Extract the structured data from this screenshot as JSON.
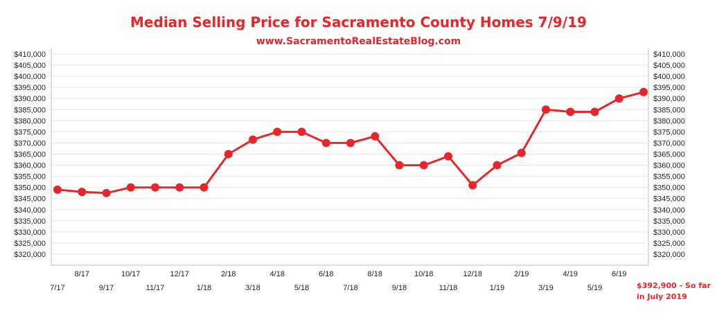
{
  "chart_data": {
    "type": "line",
    "title": "Median Selling Price for Sacramento County Homes 7/9/19",
    "subtitle": "www.SacramentoRealEstateBlog.com",
    "categories": [
      "7/17",
      "8/17",
      "9/17",
      "10/17",
      "11/17",
      "12/17",
      "1/18",
      "2/18",
      "3/18",
      "4/18",
      "5/18",
      "6/18",
      "7/18",
      "8/18",
      "9/18",
      "10/18",
      "11/18",
      "12/18",
      "1/19",
      "2/19",
      "3/19",
      "4/19",
      "5/19",
      "6/19",
      "7/19"
    ],
    "series": [
      {
        "name": "",
        "values": [
          349000,
          348000,
          347500,
          350000,
          350000,
          350000,
          350000,
          365000,
          371500,
          375000,
          375000,
          370000,
          370000,
          373000,
          360000,
          360000,
          364000,
          351000,
          360000,
          365500,
          385000,
          384000,
          384000,
          390000,
          392900
        ],
        "color": "#e8262a"
      }
    ],
    "ylim": [
      317000,
      410000
    ],
    "y_ticks": [
      320000,
      325000,
      330000,
      335000,
      340000,
      345000,
      350000,
      355000,
      360000,
      365000,
      370000,
      375000,
      380000,
      385000,
      390000,
      395000,
      400000,
      405000,
      410000
    ],
    "y_tick_labels": [
      "$320,000",
      "$325,000",
      "$330,000",
      "$335,000",
      "$340,000",
      "$345,000",
      "$350,000",
      "$355,000",
      "$360,000",
      "$365,000",
      "$370,000",
      "$375,000",
      "$380,000",
      "$385,000",
      "$390,000",
      "$395,000",
      "$400,000",
      "$405,000",
      "$410,000"
    ],
    "x_tick_labels_visible": [
      "7/17",
      "8/17",
      "9/17",
      "10/17",
      "11/17",
      "12/17",
      "1/18",
      "2/18",
      "3/18",
      "4/18",
      "5/18",
      "6/18",
      "7/18",
      "8/18",
      "9/18",
      "10/18",
      "11/18",
      "12/18",
      "1/19",
      "2/19",
      "3/19",
      "4/19",
      "5/19",
      "6/19"
    ],
    "grid": true,
    "legend": "none",
    "annotation": [
      "$392,900 - So far",
      "in July 2019"
    ],
    "accent_color": "#e8262a",
    "grid_color": "#e6e6e6"
  }
}
